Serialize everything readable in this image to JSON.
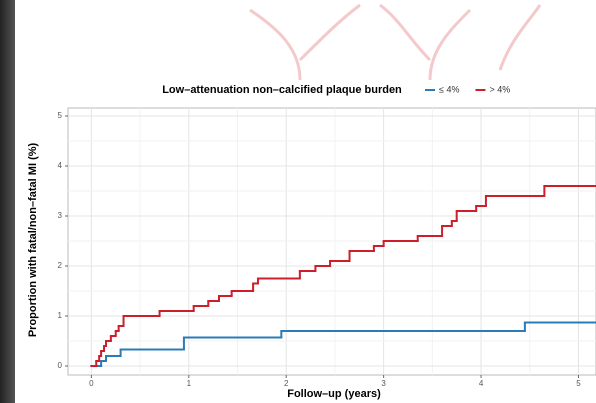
{
  "chart_data": {
    "type": "step",
    "legend_title": "Low–attenuation non–calcified plaque burden",
    "xlabel": "Follow–up (years)",
    "ylabel": "Proportion with fatal/non–fatal MI (%)",
    "xlim": [
      -0.24,
      5.18
    ],
    "ylim": [
      -0.18,
      5.16
    ],
    "xticks": [
      0,
      1,
      2,
      3,
      4,
      5
    ],
    "yticks": [
      0,
      1,
      2,
      3,
      4,
      5
    ],
    "grid": true,
    "legend": "top",
    "series": [
      {
        "name": "≤ 4%",
        "color": "#2b7bb9",
        "x": [
          0,
          0.1,
          0.15,
          0.3,
          0.95,
          1.95,
          4.45
        ],
        "values": [
          0,
          0.1,
          0.2,
          0.33,
          0.57,
          0.7,
          0.87
        ]
      },
      {
        "name": "> 4%",
        "color": "#cc1f2b",
        "x": [
          0,
          0.05,
          0.08,
          0.1,
          0.13,
          0.15,
          0.2,
          0.25,
          0.28,
          0.33,
          0.7,
          1.05,
          1.2,
          1.31,
          1.44,
          1.66,
          1.71,
          2.14,
          2.3,
          2.45,
          2.65,
          2.9,
          3.0,
          3.35,
          3.6,
          3.7,
          3.75,
          3.95,
          4.05,
          4.65
        ],
        "values": [
          0,
          0.1,
          0.2,
          0.3,
          0.4,
          0.5,
          0.6,
          0.7,
          0.8,
          1.0,
          1.1,
          1.2,
          1.3,
          1.4,
          1.5,
          1.65,
          1.75,
          1.9,
          2.0,
          2.1,
          2.3,
          2.4,
          2.5,
          2.6,
          2.8,
          2.9,
          3.1,
          3.2,
          3.4,
          3.6
        ]
      }
    ]
  }
}
